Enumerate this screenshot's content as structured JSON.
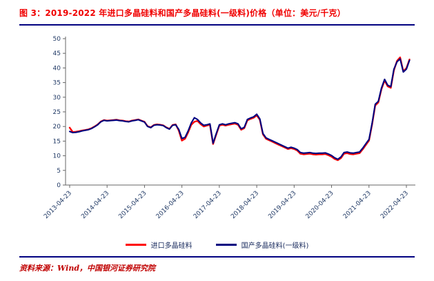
{
  "header": {
    "title": "图 3：2019-2022 年进口多晶硅料和国产多晶硅料(一级料)价格（单位：美元/千克）"
  },
  "footer": {
    "source": "资料来源：Wind，中国银河证券研究院"
  },
  "colors": {
    "title_red": "#f00000",
    "source_red": "#c00000",
    "rule_navy": "#000080",
    "axis": "#666666",
    "tick_label": "#1f3864",
    "import_line": "#ff0000",
    "domestic_line": "#000080"
  },
  "chart_data": {
    "type": "line",
    "title": "2019-2022 年进口多晶硅料和国产多晶硅料(一级料)价格",
    "unit": "美元/千克",
    "xlabel": "",
    "ylabel": "",
    "grid": false,
    "legend_position": "bottom",
    "ylim": [
      0,
      50
    ],
    "ystep": 5,
    "xlim": [
      2013.2,
      2022.55
    ],
    "x_start": 2013.31,
    "x_step": 0.083333,
    "x_ticks": [
      {
        "pos": 2013.31,
        "label": "2013-04-23"
      },
      {
        "pos": 2014.31,
        "label": "2014-04-23"
      },
      {
        "pos": 2015.31,
        "label": "2015-04-23"
      },
      {
        "pos": 2016.31,
        "label": "2016-04-23"
      },
      {
        "pos": 2017.31,
        "label": "2017-04-23"
      },
      {
        "pos": 2018.31,
        "label": "2018-04-23"
      },
      {
        "pos": 2019.31,
        "label": "2019-04-23"
      },
      {
        "pos": 2020.31,
        "label": "2020-04-23"
      },
      {
        "pos": 2021.31,
        "label": "2021-04-23"
      },
      {
        "pos": 2022.31,
        "label": "2022-04-23"
      }
    ],
    "series": [
      {
        "name": "进口多晶硅料",
        "color": "#ff0000",
        "values": [
          19.6,
          18.1,
          18.2,
          18.4,
          18.6,
          18.8,
          19.0,
          19.4,
          20.0,
          20.7,
          21.7,
          22.2,
          22.0,
          22.1,
          22.2,
          22.3,
          22.1,
          22.0,
          21.8,
          21.7,
          22.0,
          22.2,
          22.4,
          22.0,
          21.6,
          20.1,
          19.7,
          20.5,
          20.7,
          20.6,
          20.4,
          19.7,
          19.2,
          20.5,
          20.7,
          18.6,
          15.2,
          15.8,
          18.0,
          20.6,
          21.6,
          21.9,
          20.8,
          20.0,
          20.3,
          20.6,
          14.0,
          17.2,
          20.3,
          20.6,
          20.3,
          20.6,
          20.8,
          21.0,
          20.6,
          18.9,
          19.4,
          22.1,
          22.6,
          23.0,
          23.8,
          22.3,
          17.3,
          15.8,
          15.3,
          14.8,
          14.3,
          13.8,
          13.3,
          12.8,
          12.3,
          12.6,
          12.3,
          11.8,
          10.7,
          10.5,
          10.6,
          10.7,
          10.5,
          10.4,
          10.5,
          10.5,
          10.6,
          10.2,
          9.7,
          8.9,
          8.5,
          9.2,
          10.7,
          10.9,
          10.6,
          10.5,
          10.7,
          10.9,
          12.2,
          13.7,
          15.2,
          20.7,
          27.2,
          28.2,
          32.7,
          35.7,
          33.7,
          33.2,
          39.2,
          42.4,
          43.6,
          38.9,
          39.9,
          42.9
        ]
      },
      {
        "name": "国产多晶硅料(一级料)",
        "color": "#000080",
        "values": [
          18.3,
          17.9,
          18.0,
          18.2,
          18.5,
          18.7,
          18.9,
          19.3,
          19.9,
          20.6,
          21.6,
          22.1,
          21.9,
          22.0,
          22.1,
          22.2,
          22.0,
          21.9,
          21.7,
          21.6,
          21.9,
          22.1,
          22.3,
          21.9,
          21.5,
          20.0,
          19.6,
          20.4,
          20.6,
          20.5,
          20.3,
          19.6,
          19.1,
          20.4,
          20.6,
          19.0,
          15.9,
          16.3,
          18.5,
          21.2,
          23.0,
          22.4,
          21.2,
          20.4,
          20.6,
          20.9,
          14.3,
          17.5,
          20.6,
          20.9,
          20.6,
          20.9,
          21.1,
          21.3,
          20.9,
          19.2,
          19.7,
          22.4,
          22.9,
          23.3,
          24.2,
          22.6,
          17.6,
          16.1,
          15.6,
          15.1,
          14.6,
          14.1,
          13.6,
          13.1,
          12.6,
          12.9,
          12.6,
          12.1,
          11.1,
          10.9,
          11.0,
          11.1,
          10.9,
          10.8,
          10.9,
          10.9,
          11.0,
          10.6,
          10.1,
          9.3,
          8.8,
          9.6,
          11.1,
          11.3,
          11.0,
          10.9,
          11.1,
          11.3,
          12.6,
          14.1,
          15.6,
          21.1,
          27.6,
          28.6,
          33.1,
          36.1,
          34.1,
          33.6,
          39.6,
          42.1,
          43.1,
          38.6,
          39.6,
          42.6
        ]
      }
    ]
  }
}
